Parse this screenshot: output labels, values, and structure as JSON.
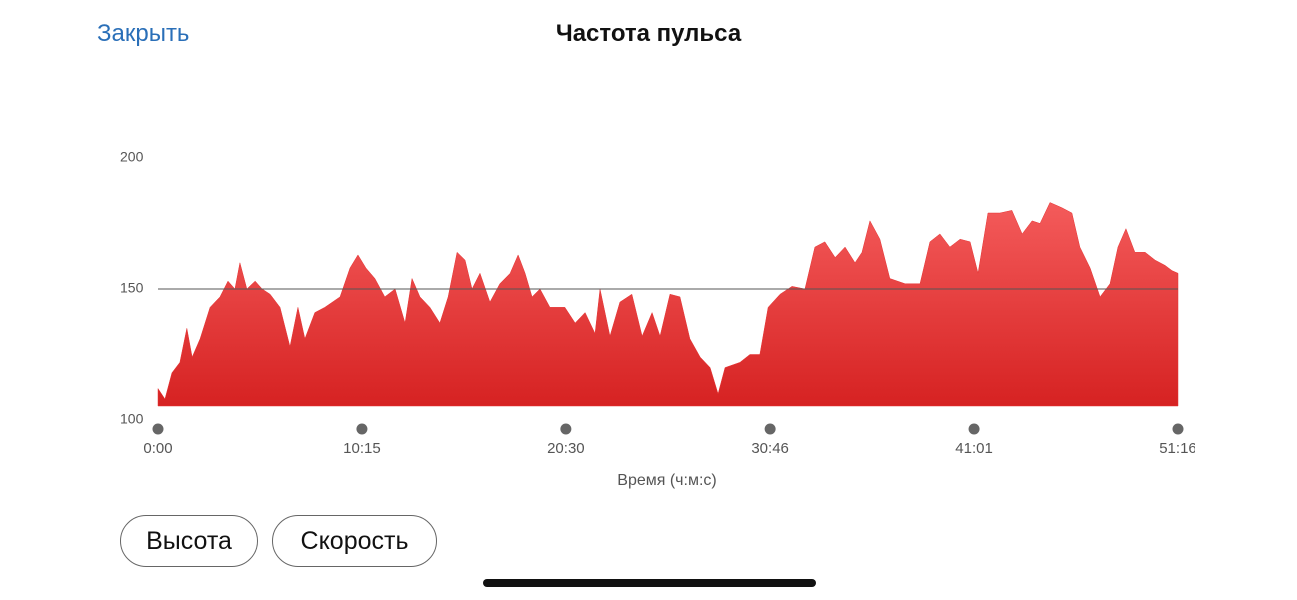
{
  "header": {
    "close": "Закрыть"
  },
  "chart_data": {
    "type": "area",
    "title": "Частота пульса",
    "xlabel": "Время (ч:м:с)",
    "color": "#e53333",
    "x": [
      0,
      21,
      42,
      66,
      87,
      103,
      127,
      157,
      187,
      211,
      232,
      247,
      268,
      293,
      314,
      338,
      368,
      398,
      422,
      443,
      473,
      503,
      549,
      579,
      603,
      627,
      654,
      684,
      715,
      745,
      766,
      790,
      820,
      850,
      875,
      902,
      926,
      947,
      971,
      1001,
      1031,
      1062,
      1086,
      1107,
      1128,
      1152,
      1182,
      1227,
      1258,
      1288,
      1318,
      1333,
      1363,
      1393,
      1429,
      1460,
      1490,
      1514,
      1544,
      1574,
      1604,
      1635,
      1665,
      1689,
      1710,
      1755,
      1785,
      1815,
      1840,
      1876,
      1912,
      1951,
      1981,
      2011,
      2042,
      2072,
      2102,
      2123,
      2147,
      2177,
      2207,
      2253,
      2298,
      2328,
      2358,
      2388,
      2419,
      2449,
      2473,
      2503,
      2539,
      2575,
      2606,
      2636,
      2660,
      2690,
      2726,
      2756,
      2780,
      2811,
      2841,
      2871,
      2895,
      2919,
      2946,
      2977,
      3007,
      3037,
      3058,
      3076
    ],
    "values": [
      112,
      108,
      118,
      122,
      135,
      124,
      131,
      143,
      147,
      153,
      150,
      160,
      150,
      153,
      150,
      148,
      143,
      128,
      143,
      131,
      141,
      143,
      147,
      158,
      163,
      158,
      154,
      147,
      150,
      137,
      154,
      147,
      143,
      137,
      147,
      164,
      161,
      150,
      156,
      145,
      152,
      156,
      163,
      156,
      147,
      150,
      143,
      143,
      137,
      141,
      133,
      150,
      132,
      145,
      148,
      132,
      141,
      132,
      148,
      147,
      131,
      124,
      120,
      110,
      120,
      122,
      125,
      125,
      143,
      148,
      151,
      150,
      166,
      168,
      162,
      166,
      160,
      164,
      176,
      169,
      154,
      152,
      152,
      168,
      171,
      166,
      169,
      168,
      156,
      179,
      179,
      180,
      171,
      176,
      175,
      183,
      181,
      179,
      166,
      158,
      147,
      152,
      166,
      173,
      164,
      164,
      161,
      159,
      157,
      156
    ],
    "xlim": [
      0,
      3076
    ],
    "xticks": [
      {
        "value": 0,
        "label": "0:00"
      },
      {
        "value": 615,
        "label": "10:15"
      },
      {
        "value": 1230,
        "label": "20:30"
      },
      {
        "value": 1846,
        "label": "30:46"
      },
      {
        "value": 2461,
        "label": "41:01"
      },
      {
        "value": 3076,
        "label": "51:16"
      }
    ],
    "ylim": [
      100,
      200
    ],
    "yticks": [
      100,
      150,
      200
    ],
    "reference_line": 150
  },
  "buttons": [
    "Высота",
    "Скорость"
  ]
}
